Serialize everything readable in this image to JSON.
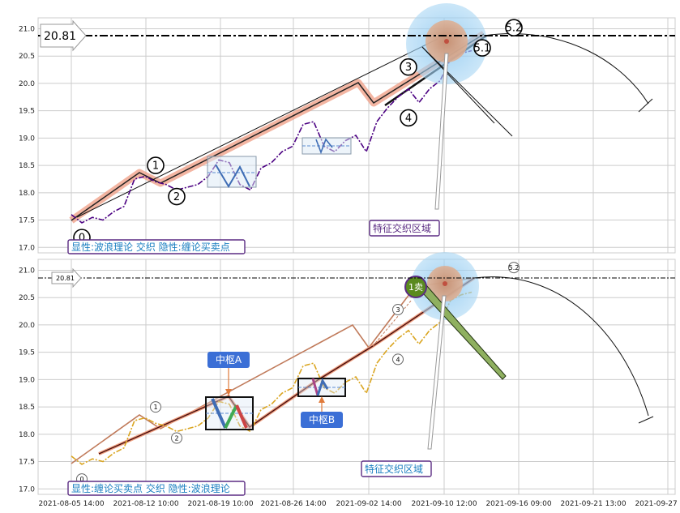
{
  "chart_data": [
    {
      "type": "line",
      "title": "",
      "ylim": [
        16.9,
        21.2
      ],
      "y_ticks": [
        17.0,
        17.5,
        18.0,
        18.5,
        19.0,
        19.5,
        20.0,
        20.5,
        21.0
      ],
      "y_tick_labels": [
        "17.0",
        "17.5",
        "18.0",
        "18.5",
        "19.0",
        "19.5",
        "20.0",
        "20.5",
        "21.0"
      ],
      "grid": true,
      "price_marker": "20.81",
      "price_level": 20.81,
      "caption": "显性:波浪理论 交织 隐性:缠论买卖点",
      "annotation": "特征交织区域",
      "wave_labels": [
        {
          "label": "0",
          "date": "2021-08-06",
          "value": 17.18
        },
        {
          "label": "1",
          "date": "2021-08-13",
          "value": 18.5
        },
        {
          "label": "2",
          "date": "2021-08-15",
          "value": 17.93
        },
        {
          "label": "3",
          "date": "2021-09-06",
          "value": 20.3
        },
        {
          "label": "4",
          "date": "2021-09-06",
          "value": 19.37
        },
        {
          "label": "5.1",
          "date": "2021-09-13",
          "value": 20.65
        },
        {
          "label": "5.2",
          "date": "2021-09-16",
          "value": 21.02
        }
      ],
      "series": [
        {
          "values": [
            [
              "2021-08-05",
              17.6
            ],
            [
              "2021-08-06",
              17.45
            ],
            [
              "2021-08-07",
              17.55
            ],
            [
              "2021-08-08",
              17.5
            ],
            [
              "2021-08-09",
              17.65
            ],
            [
              "2021-08-10",
              17.75
            ],
            [
              "2021-08-11",
              18.25
            ],
            [
              "2021-08-12",
              18.3
            ],
            [
              "2021-08-13",
              18.2
            ],
            [
              "2021-08-14",
              18.15
            ],
            [
              "2021-08-15",
              18.05
            ],
            [
              "2021-08-16",
              18.1
            ],
            [
              "2021-08-17",
              18.15
            ],
            [
              "2021-08-18",
              18.3
            ],
            [
              "2021-08-19",
              18.6
            ],
            [
              "2021-08-20",
              18.55
            ],
            [
              "2021-08-21",
              18.15
            ],
            [
              "2021-08-22",
              18.05
            ],
            [
              "2021-08-23",
              18.45
            ],
            [
              "2021-08-24",
              18.55
            ],
            [
              "2021-08-25",
              18.75
            ],
            [
              "2021-08-26",
              18.85
            ],
            [
              "2021-08-27",
              19.25
            ],
            [
              "2021-08-28",
              19.3
            ],
            [
              "2021-08-29",
              18.85
            ],
            [
              "2021-08-30",
              18.75
            ],
            [
              "2021-08-31",
              18.95
            ],
            [
              "2021-09-01",
              19.05
            ],
            [
              "2021-09-02",
              18.75
            ],
            [
              "2021-09-03",
              19.3
            ],
            [
              "2021-09-04",
              19.55
            ],
            [
              "2021-09-05",
              19.75
            ],
            [
              "2021-09-06",
              19.9
            ],
            [
              "2021-09-07",
              19.65
            ],
            [
              "2021-09-08",
              19.9
            ],
            [
              "2021-09-09",
              20.05
            ],
            [
              "2021-09-10",
              20.45
            ],
            [
              "2021-09-11",
              20.55
            ],
            [
              "2021-09-12",
              20.6
            ]
          ]
        }
      ]
    },
    {
      "type": "line",
      "title": "",
      "ylim": [
        16.9,
        21.2
      ],
      "y_ticks": [
        17.0,
        17.5,
        18.0,
        18.5,
        19.0,
        19.5,
        20.0,
        20.5,
        21.0
      ],
      "y_tick_labels": [
        "17.0",
        "17.5",
        "18.0",
        "18.5",
        "19.0",
        "19.5",
        "20.0",
        "20.5",
        "21.0"
      ],
      "grid": true,
      "price_marker": "20.81",
      "price_level": 20.81,
      "caption": "显性:缠论买卖点 交织 隐性:波浪理论",
      "annotation": "特征交织区域",
      "box_labels": [
        "中枢A",
        "中枢B"
      ],
      "sell_label": "1卖",
      "wave_labels": [
        {
          "label": "0",
          "date": "2021-08-06",
          "value": 17.18
        },
        {
          "label": "1",
          "date": "2021-08-13",
          "value": 18.5
        },
        {
          "label": "2",
          "date": "2021-08-15",
          "value": 17.93
        },
        {
          "label": "3",
          "date": "2021-09-05",
          "value": 20.28
        },
        {
          "label": "4",
          "date": "2021-09-05",
          "value": 19.37
        },
        {
          "label": "5.2",
          "date": "2021-09-16",
          "value": 21.05
        }
      ],
      "series": [
        {
          "values": [
            [
              "2021-08-05",
              17.6
            ],
            [
              "2021-08-06",
              17.45
            ],
            [
              "2021-08-07",
              17.55
            ],
            [
              "2021-08-08",
              17.5
            ],
            [
              "2021-08-09",
              17.65
            ],
            [
              "2021-08-10",
              17.75
            ],
            [
              "2021-08-11",
              18.25
            ],
            [
              "2021-08-12",
              18.3
            ],
            [
              "2021-08-13",
              18.2
            ],
            [
              "2021-08-14",
              18.15
            ],
            [
              "2021-08-15",
              18.05
            ],
            [
              "2021-08-16",
              18.1
            ],
            [
              "2021-08-17",
              18.15
            ],
            [
              "2021-08-18",
              18.3
            ],
            [
              "2021-08-19",
              18.6
            ],
            [
              "2021-08-20",
              18.55
            ],
            [
              "2021-08-21",
              18.15
            ],
            [
              "2021-08-22",
              18.05
            ],
            [
              "2021-08-23",
              18.45
            ],
            [
              "2021-08-24",
              18.55
            ],
            [
              "2021-08-25",
              18.75
            ],
            [
              "2021-08-26",
              18.85
            ],
            [
              "2021-08-27",
              19.25
            ],
            [
              "2021-08-28",
              19.3
            ],
            [
              "2021-08-29",
              18.85
            ],
            [
              "2021-08-30",
              18.75
            ],
            [
              "2021-08-31",
              18.95
            ],
            [
              "2021-09-01",
              19.05
            ],
            [
              "2021-09-02",
              18.75
            ],
            [
              "2021-09-03",
              19.3
            ],
            [
              "2021-09-04",
              19.55
            ],
            [
              "2021-09-05",
              19.75
            ],
            [
              "2021-09-06",
              19.9
            ],
            [
              "2021-09-07",
              19.65
            ],
            [
              "2021-09-08",
              19.9
            ],
            [
              "2021-09-09",
              20.05
            ],
            [
              "2021-09-10",
              20.45
            ],
            [
              "2021-09-11",
              20.55
            ],
            [
              "2021-09-12",
              20.6
            ]
          ]
        }
      ]
    }
  ],
  "x_axis": {
    "tick_labels": [
      "2021-08-05 14:00",
      "2021-08-12 10:00",
      "2021-08-19 10:00",
      "2021-08-26 14:00",
      "2021-09-02 14:00",
      "2021-09-10 12:00",
      "2021-09-16 09:00",
      "2021-09-21 13:00",
      "2021-09-27 10:00"
    ]
  },
  "colors": {
    "grid": "#cccccc",
    "top_price_line": "#4b0082",
    "bottom_price_line": "#daa520",
    "wave_highlight": "#e8735a",
    "caption_border": "#5b2c83",
    "caption_text": "#1a7fc1",
    "box_label_bg": "#3b6fd6",
    "sell_badge": "#5a8a1f",
    "zone_blue": "#9fd0f0",
    "zone_brown": "#d7a285"
  }
}
